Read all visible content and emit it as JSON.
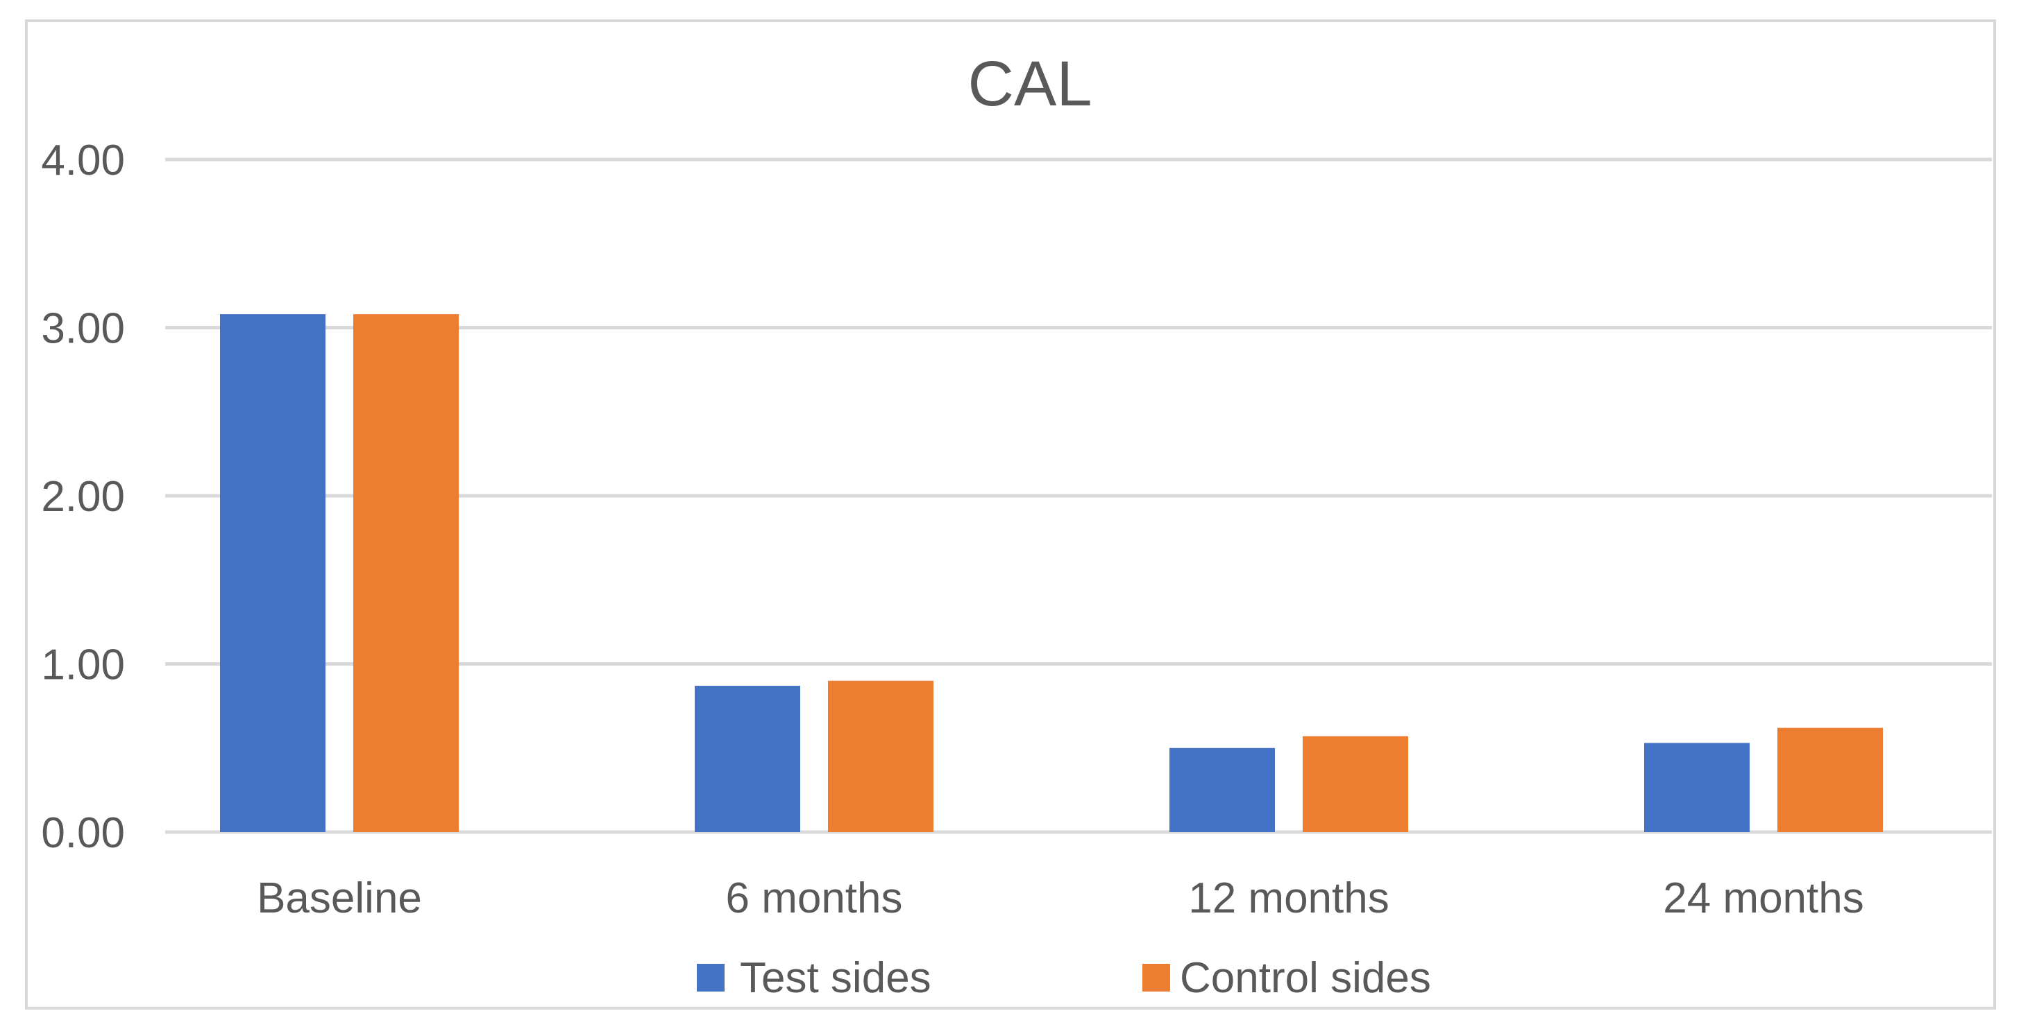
{
  "chart_data": {
    "type": "bar",
    "title": "CAL",
    "xlabel": "",
    "ylabel": "",
    "categories": [
      "Baseline",
      "6 months",
      "12 months",
      "24 months"
    ],
    "series": [
      {
        "name": "Test sides",
        "color": "#4472c4",
        "values": [
          3.08,
          0.87,
          0.5,
          0.53
        ]
      },
      {
        "name": "Control sides",
        "color": "#ed7d31",
        "values": [
          3.08,
          0.9,
          0.57,
          0.62
        ]
      }
    ],
    "ylim": [
      0,
      4
    ],
    "yticks": [
      "0.00",
      "1.00",
      "2.00",
      "3.00",
      "4.00"
    ],
    "grid": true,
    "legend_position": "bottom"
  }
}
